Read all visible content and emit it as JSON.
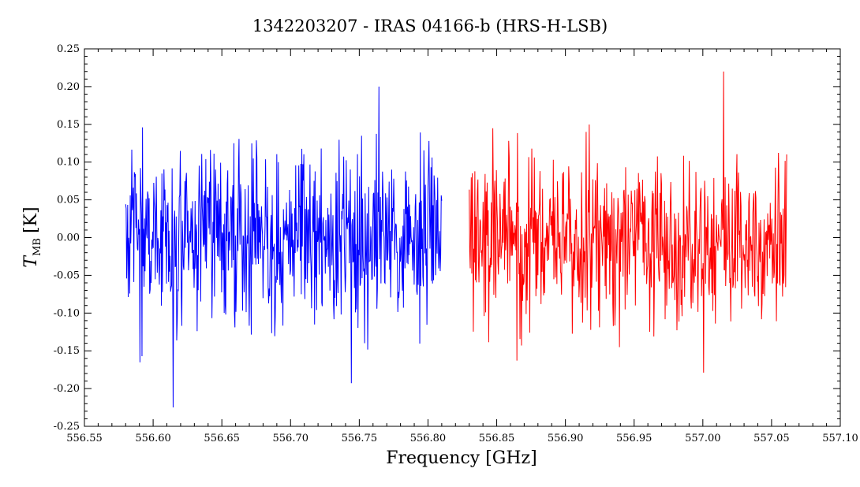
{
  "chart_data": {
    "type": "line",
    "title": "1342203207 - IRAS 04166-b (HRS-H-LSB)",
    "xlabel": "Frequency [GHz]",
    "ylabel": "T",
    "ylabel_subscript": "MB",
    "ylabel_unit": "[K]",
    "xlim": [
      556.55,
      557.1
    ],
    "ylim": [
      -0.25,
      0.25
    ],
    "x_ticks": [
      556.55,
      556.6,
      556.65,
      556.7,
      556.75,
      556.8,
      556.85,
      556.9,
      556.95,
      557.0,
      557.05,
      557.1
    ],
    "x_tick_labels": [
      "556.55",
      "556.60",
      "556.65",
      "556.70",
      "556.75",
      "556.80",
      "556.85",
      "556.90",
      "556.95",
      "557.00",
      "557.05",
      "557.10"
    ],
    "y_ticks": [
      -0.25,
      -0.2,
      -0.15,
      -0.1,
      -0.05,
      0.0,
      0.05,
      0.1,
      0.15,
      0.2,
      0.25
    ],
    "y_tick_labels": [
      "-0.25",
      "-0.20",
      "-0.15",
      "-0.10",
      "-0.05",
      "0.00",
      "0.05",
      "0.10",
      "0.15",
      "0.20",
      "0.25"
    ],
    "grid": false,
    "series": [
      {
        "color": "#0000ff",
        "x_range": [
          556.58,
          556.81
        ],
        "noise_sigma_K": 0.055,
        "y_extremes": [
          -0.225,
          0.2
        ]
      },
      {
        "color": "#ff0000",
        "x_range": [
          556.83,
          557.061
        ],
        "noise_sigma_K": 0.055,
        "y_extremes": [
          -0.163,
          0.22
        ]
      }
    ]
  }
}
